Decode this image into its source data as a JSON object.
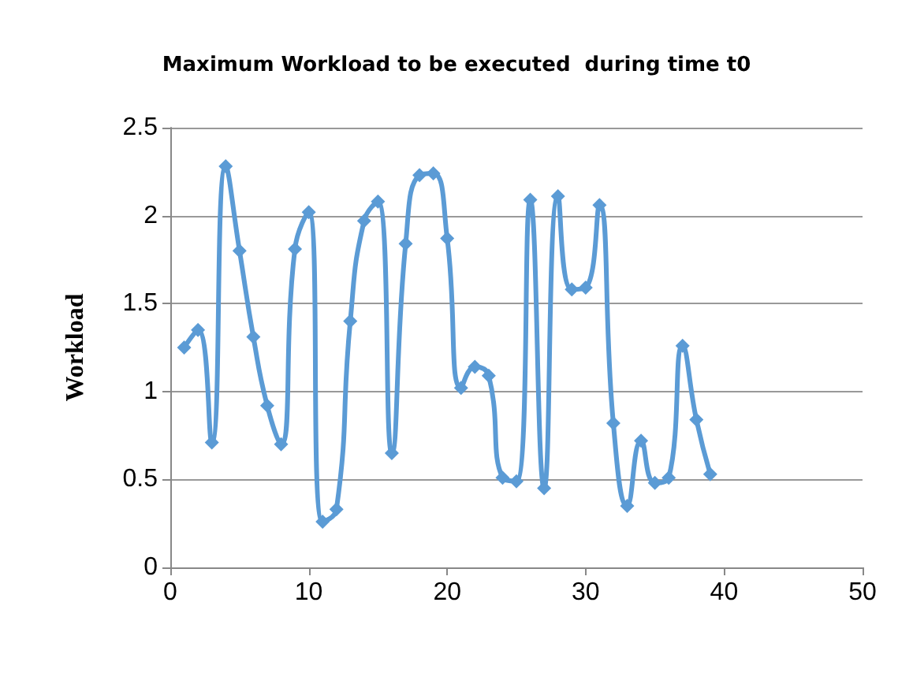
{
  "chart_data": {
    "type": "line",
    "title": "Maximum Workload to be executed  during time t0",
    "ylabel": "Workload",
    "x": [
      1,
      2,
      3,
      4,
      5,
      6,
      7,
      8,
      9,
      10,
      11,
      12,
      13,
      14,
      15,
      16,
      17,
      18,
      19,
      20,
      21,
      22,
      23,
      24,
      25,
      26,
      27,
      28,
      29,
      30,
      31,
      32,
      33,
      34,
      35,
      36,
      37,
      38,
      39
    ],
    "series": [
      {
        "color": "#5b9bd5",
        "values": [
          1.25,
          1.35,
          0.71,
          2.28,
          1.8,
          1.31,
          0.92,
          0.7,
          1.81,
          2.02,
          0.26,
          0.33,
          1.4,
          1.97,
          2.08,
          0.65,
          1.84,
          2.23,
          2.24,
          1.87,
          1.02,
          1.14,
          1.09,
          0.51,
          0.49,
          2.09,
          0.45,
          2.11,
          1.58,
          1.59,
          2.06,
          0.82,
          0.35,
          0.72,
          0.48,
          0.51,
          1.26,
          0.84,
          0.53
        ]
      }
    ],
    "xlim": [
      0,
      50
    ],
    "xticks": [
      0,
      10,
      20,
      30,
      40,
      50
    ],
    "ylim": [
      0,
      2.5
    ],
    "yticks": [
      0,
      0.5,
      1,
      1.5,
      2,
      2.5
    ],
    "grid": "y",
    "marker": "diamond",
    "line_style": "solid"
  }
}
